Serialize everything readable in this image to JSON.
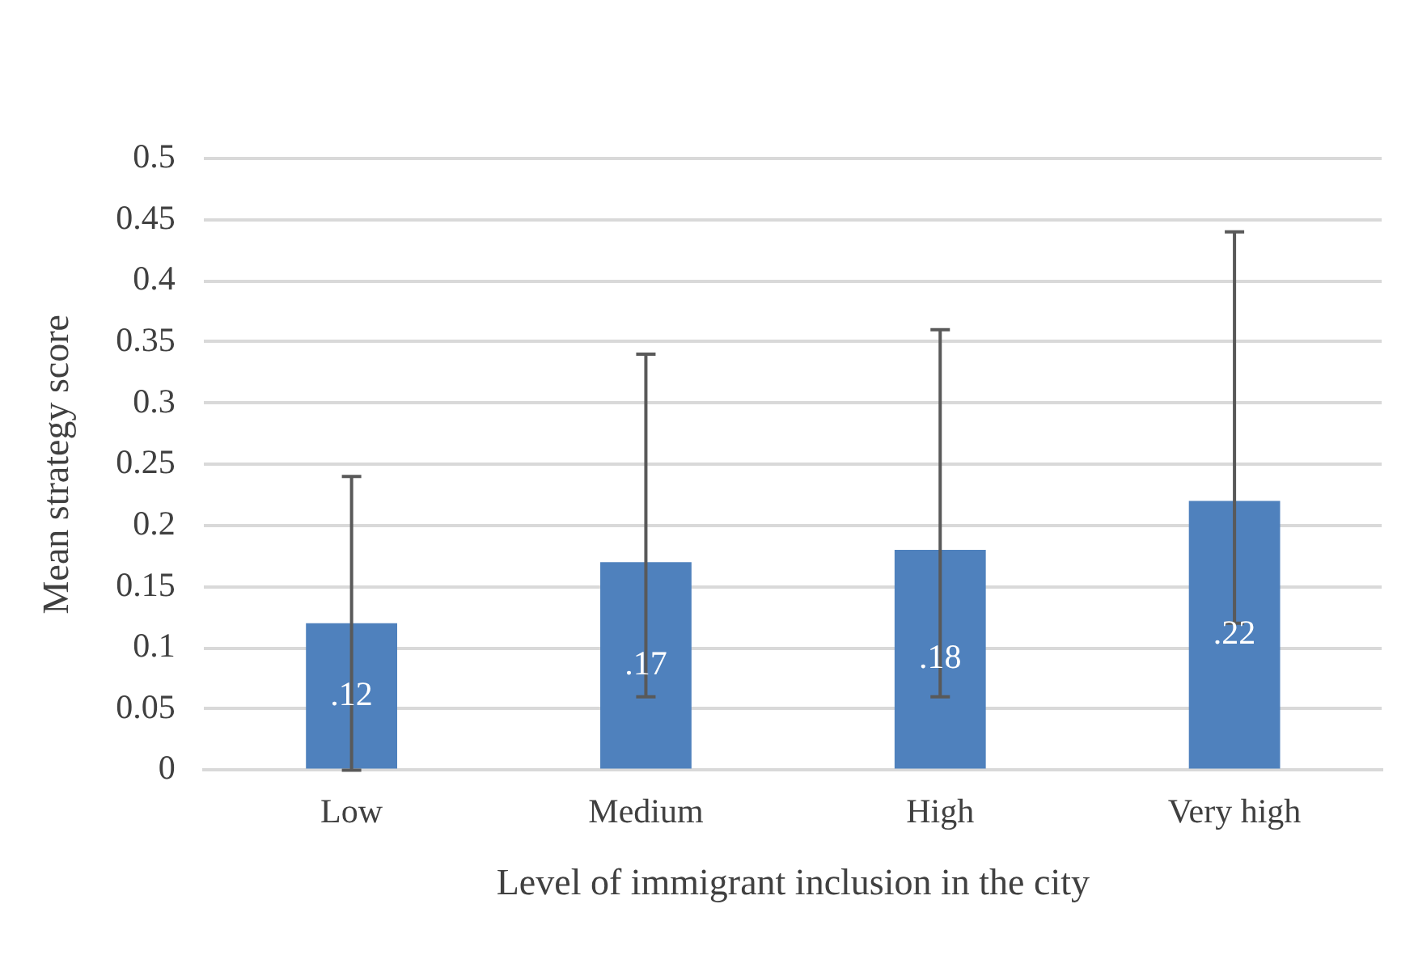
{
  "chart_data": {
    "type": "bar",
    "xlabel": "Level of immigrant inclusion in the city",
    "ylabel": "Mean strategy score",
    "categories": [
      "Low",
      "Medium",
      "High",
      "Very high"
    ],
    "values": [
      0.12,
      0.17,
      0.18,
      0.22
    ],
    "value_labels": [
      ".12",
      ".17",
      ".18",
      ".22"
    ],
    "errors": [
      [
        0,
        0.24
      ],
      [
        0.06,
        0.34
      ],
      [
        0.06,
        0.36
      ],
      [
        0.12,
        0.44
      ]
    ],
    "color": "#4f81bd",
    "ylim": [
      0,
      0.5
    ],
    "yticks": [
      0,
      0.05,
      0.1,
      0.15,
      0.2,
      0.25,
      0.3,
      0.35,
      0.4,
      0.45,
      0.5
    ],
    "grid": "y",
    "legend": false
  }
}
